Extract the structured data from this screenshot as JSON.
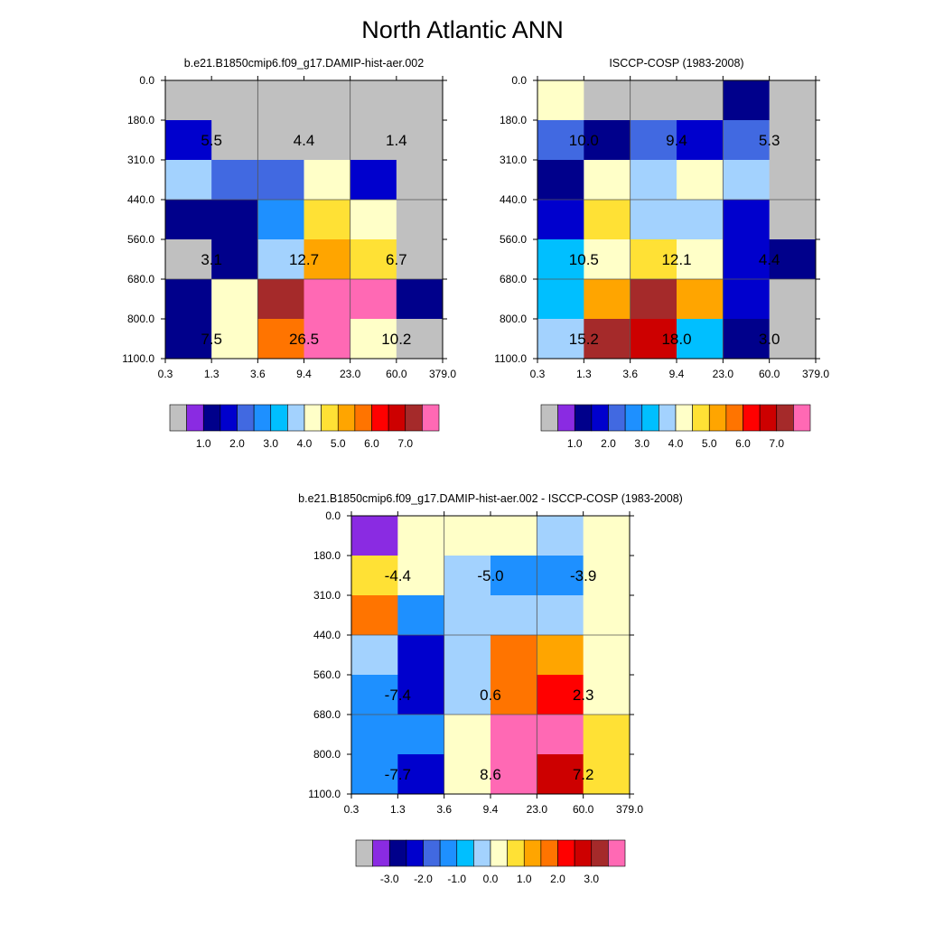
{
  "title": "North Atlantic ANN",
  "chart_data": [
    {
      "type": "heatmap",
      "title": "b.e21.B1850cmip6.f09_g17.DAMIP-hist-aer.002",
      "x_ticks": [
        "0.3",
        "1.3",
        "3.6",
        "9.4",
        "23.0",
        "60.0",
        "379.0"
      ],
      "y_ticks": [
        "0.0",
        "180.0",
        "310.0",
        "440.0",
        "560.0",
        "680.0",
        "800.0",
        "1100.0"
      ],
      "cells": [
        [
          -1,
          -1,
          -1,
          -1,
          -1,
          -1
        ],
        [
          1.1,
          -1,
          -1,
          -1,
          -1,
          -1
        ],
        [
          2.5,
          1.4,
          1.3,
          3.3,
          1.2,
          -1
        ],
        [
          0.6,
          0.7,
          1.9,
          3.9,
          3.1,
          -1
        ],
        [
          -1,
          0.5,
          2.9,
          4.2,
          3.6,
          -1
        ],
        [
          0.6,
          3.2,
          6.3,
          7.5,
          6.5,
          0.6
        ],
        [
          0.6,
          3.0,
          4.8,
          6.6,
          3.3,
          -1
        ]
      ],
      "labels": [
        {
          "row": 1,
          "col": 0,
          "text": "5.5"
        },
        {
          "row": 1,
          "col": 2,
          "text": "4.4"
        },
        {
          "row": 1,
          "col": 4,
          "text": "1.4"
        },
        {
          "row": 4,
          "col": 0,
          "text": "3.1"
        },
        {
          "row": 4,
          "col": 2,
          "text": "12.7"
        },
        {
          "row": 4,
          "col": 4,
          "text": "6.7"
        },
        {
          "row": 6,
          "col": 0,
          "text": "7.5"
        },
        {
          "row": 6,
          "col": 2,
          "text": "26.5"
        },
        {
          "row": 6,
          "col": 4,
          "text": "10.2"
        }
      ],
      "colorbar": {
        "labels": [
          "1.0",
          "2.0",
          "3.0",
          "4.0",
          "5.0",
          "6.0",
          "7.0"
        ]
      }
    },
    {
      "type": "heatmap",
      "title": "ISCCP-COSP (1983-2008)",
      "x_ticks": [
        "0.3",
        "1.3",
        "3.6",
        "9.4",
        "23.0",
        "60.0",
        "379.0"
      ],
      "y_ticks": [
        "0.0",
        "180.0",
        "310.0",
        "440.0",
        "560.0",
        "680.0",
        "800.0",
        "1100.0"
      ],
      "cells": [
        [
          3.3,
          -1,
          -1,
          -1,
          0.6,
          -1
        ],
        [
          1.4,
          0.6,
          1.4,
          1.2,
          1.3,
          -1
        ],
        [
          0.6,
          3.3,
          2.9,
          3.3,
          2.5,
          -1
        ],
        [
          1.2,
          3.9,
          2.9,
          2.9,
          1.1,
          -1
        ],
        [
          2.4,
          3.4,
          3.9,
          3.2,
          1.2,
          0.6
        ],
        [
          2.4,
          4.3,
          6.4,
          4.3,
          1.2,
          -1
        ],
        [
          2.9,
          6.2,
          5.8,
          2.4,
          0.6,
          -1
        ]
      ],
      "labels": [
        {
          "row": 1,
          "col": 0,
          "text": "10.0"
        },
        {
          "row": 1,
          "col": 2,
          "text": "9.4"
        },
        {
          "row": 1,
          "col": 4,
          "text": "5.3"
        },
        {
          "row": 4,
          "col": 0,
          "text": "10.5"
        },
        {
          "row": 4,
          "col": 2,
          "text": "12.1"
        },
        {
          "row": 4,
          "col": 4,
          "text": "4.4"
        },
        {
          "row": 6,
          "col": 0,
          "text": "15.2"
        },
        {
          "row": 6,
          "col": 2,
          "text": "18.0"
        },
        {
          "row": 6,
          "col": 4,
          "text": "3.0"
        }
      ],
      "colorbar": {
        "labels": [
          "1.0",
          "2.0",
          "3.0",
          "4.0",
          "5.0",
          "6.0",
          "7.0"
        ]
      }
    },
    {
      "type": "heatmap",
      "title": "b.e21.B1850cmip6.f09_g17.DAMIP-hist-aer.002 - ISCCP-COSP (1983-2008)",
      "x_ticks": [
        "0.3",
        "1.3",
        "3.6",
        "9.4",
        "23.0",
        "60.0",
        "379.0"
      ],
      "y_ticks": [
        "0.0",
        "180.0",
        "310.0",
        "440.0",
        "560.0",
        "680.0",
        "800.0",
        "1100.0"
      ],
      "cells": [
        [
          -3.6,
          -0.2,
          -0.2,
          -0.2,
          -0.6,
          -0.2
        ],
        [
          0.2,
          -0.2,
          -0.6,
          -1.6,
          -1.6,
          -0.2
        ],
        [
          1.4,
          -1.6,
          -1.0,
          -0.6,
          -0.6,
          -0.2
        ],
        [
          -0.6,
          -3.0,
          -0.6,
          1.4,
          0.8,
          -0.2
        ],
        [
          -1.6,
          -2.6,
          -0.6,
          1.4,
          1.8,
          -0.2
        ],
        [
          -1.6,
          -1.6,
          -0.2,
          3.6,
          3.6,
          0.2
        ],
        [
          -1.6,
          -3.0,
          -0.2,
          3.6,
          2.2,
          0.2
        ]
      ],
      "labels": [
        {
          "row": 1,
          "col": 0,
          "text": "-4.4"
        },
        {
          "row": 1,
          "col": 2,
          "text": "-5.0"
        },
        {
          "row": 1,
          "col": 4,
          "text": "-3.9"
        },
        {
          "row": 4,
          "col": 0,
          "text": "-7.4"
        },
        {
          "row": 4,
          "col": 2,
          "text": "0.6"
        },
        {
          "row": 4,
          "col": 4,
          "text": "2.3"
        },
        {
          "row": 6,
          "col": 0,
          "text": "-7.7"
        },
        {
          "row": 6,
          "col": 2,
          "text": "8.6"
        },
        {
          "row": 6,
          "col": 4,
          "text": "7.2"
        }
      ],
      "colorbar": {
        "labels": [
          "-3.0",
          "-2.0",
          "-1.0",
          "0.0",
          "1.0",
          "2.0",
          "3.0"
        ]
      }
    }
  ],
  "colormaps": {
    "abs": {
      "missing": "#c0c0c0",
      "colors": [
        "#8a2be2",
        "#00008b",
        "#0000cd",
        "#4169e1",
        "#1e90ff",
        "#00bfff",
        "#a3d2fe",
        "#ffffc8",
        "#ffe135",
        "#ffa500",
        "#ff7400",
        "#ff0000",
        "#cd0000",
        "#a52a2a",
        "#ff69b4"
      ],
      "bounds": [
        0.5,
        1.0,
        1.25,
        1.5,
        2.0,
        2.5,
        3.0,
        3.5,
        4.0,
        4.5,
        5.0,
        5.5,
        6.0,
        6.5,
        7.0
      ]
    },
    "diff": {
      "missing": "#c0c0c0",
      "colors": [
        "#8a2be2",
        "#00008b",
        "#0000cd",
        "#4169e1",
        "#1e90ff",
        "#00bfff",
        "#a3d2fe",
        "#ffffc8",
        "#ffe135",
        "#ffa500",
        "#ff7400",
        "#ff0000",
        "#cd0000",
        "#a52a2a",
        "#ff69b4"
      ],
      "bounds": [
        -3.5,
        -3.0,
        -2.5,
        -2.0,
        -1.5,
        -1.0,
        -0.5,
        0.0,
        0.5,
        1.0,
        1.5,
        2.0,
        2.5,
        3.0,
        3.5
      ]
    }
  }
}
